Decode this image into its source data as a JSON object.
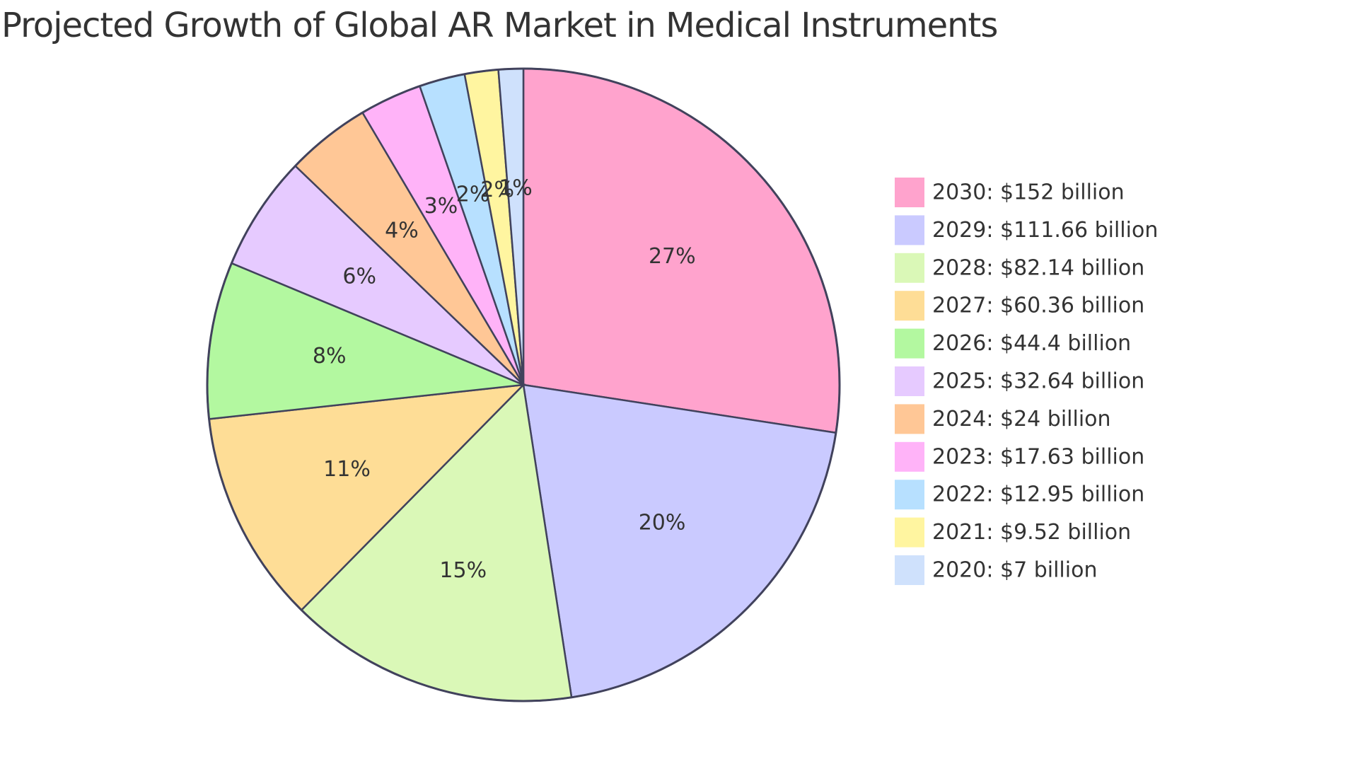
{
  "chart_data": {
    "type": "pie",
    "title": "Projected Growth of Global AR Market in Medical Instruments",
    "labels": [
      "2030",
      "2029",
      "2028",
      "2027",
      "2026",
      "2025",
      "2024",
      "2023",
      "2022",
      "2021",
      "2020"
    ],
    "values": [
      152,
      111.66,
      82.14,
      60.36,
      44.4,
      32.64,
      24,
      17.63,
      12.95,
      9.52,
      7
    ],
    "legend_entries": [
      "2030: $152 billion",
      "2029: $111.66 billion",
      "2028: $82.14 billion",
      "2027: $60.36 billion",
      "2026: $44.4 billion",
      "2025: $32.64 billion",
      "2024: $24 billion",
      "2023: $17.63 billion",
      "2022: $12.95 billion",
      "2021: $9.52 billion",
      "2020: $7 billion"
    ],
    "percent_labels": [
      "27%",
      "20%",
      "15%",
      "11%",
      "8%",
      "6%",
      "4%",
      "3%",
      "2%",
      "2%",
      "1%"
    ],
    "colors": [
      "#ffa3cd",
      "#cacaff",
      "#daf8b7",
      "#fedd96",
      "#b3f8a0",
      "#e6caff",
      "#ffc796",
      "#ffb3f8",
      "#b7e0ff",
      "#fff5a0",
      "#cfe1fc"
    ],
    "stroke_color": "#41425c",
    "legend_position": "right"
  }
}
